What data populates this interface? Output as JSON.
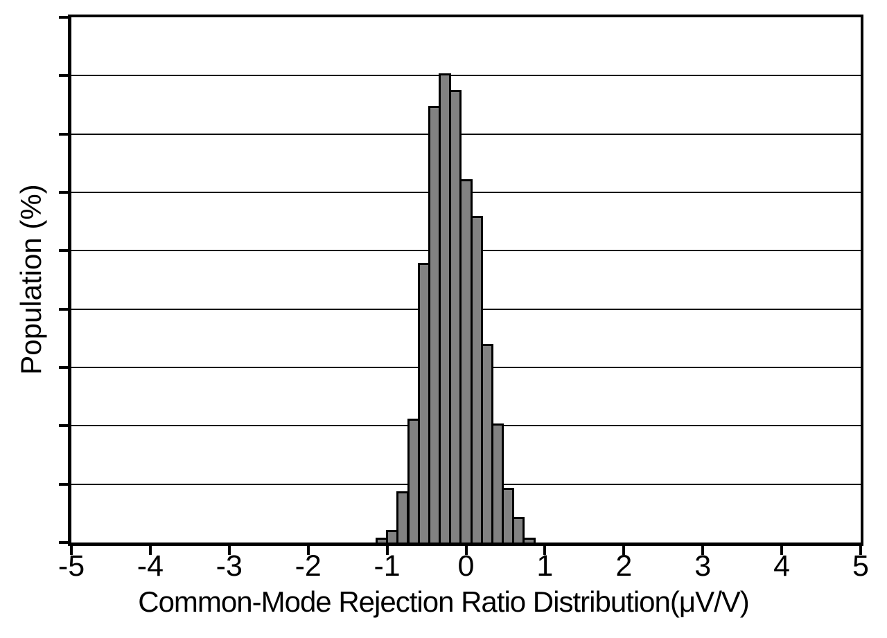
{
  "figure": {
    "background": "#ffffff",
    "frame_color": "#000000"
  },
  "chart_data": {
    "type": "bar",
    "subtype": "histogram",
    "title": "",
    "xlabel": "Common-Mode Rejection Ratio Distribution(μV/V)",
    "ylabel": "Population (%)",
    "xlim": [
      -5,
      5
    ],
    "x_tick_values": [
      -5,
      -4,
      -3,
      -2,
      -1,
      0,
      1,
      2,
      3,
      4,
      5
    ],
    "x_tick_labels": [
      "-5",
      "-4",
      "-3",
      "-2",
      "-1",
      "0",
      "1",
      "2",
      "3",
      "4",
      "5"
    ],
    "y_axis": {
      "tick_labels_shown": false,
      "gridline_divisions": 9,
      "estimated_percent_per_division": 2
    },
    "grid": true,
    "legend": false,
    "bar_fill": "#828282",
    "bar_edge": "#000000",
    "bin_edges": [
      -1.133,
      -1.0,
      -0.867,
      -0.733,
      -0.6,
      -0.467,
      -0.333,
      -0.2,
      -0.067,
      0.067,
      0.2,
      0.333,
      0.467,
      0.6,
      0.733,
      0.867
    ],
    "heights_divisions": [
      0.08,
      0.21,
      0.88,
      2.12,
      4.79,
      7.48,
      8.04,
      7.76,
      6.23,
      5.6,
      3.4,
      2.04,
      0.94,
      0.44,
      0.08
    ],
    "values_percent_estimated": [
      0.15,
      0.43,
      1.76,
      4.25,
      9.58,
      14.96,
      16.08,
      15.51,
      12.45,
      11.2,
      6.81,
      4.08,
      1.87,
      0.88,
      0.16
    ]
  }
}
